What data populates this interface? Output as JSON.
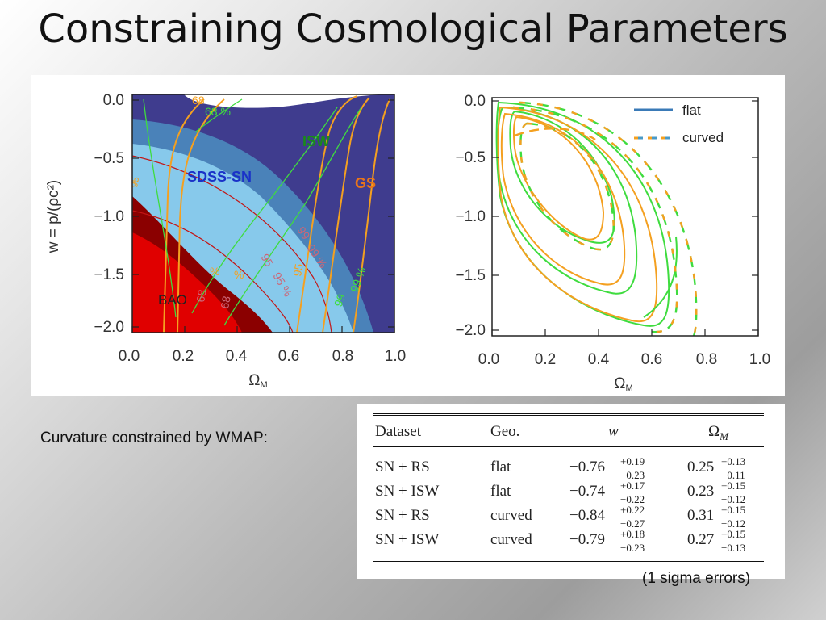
{
  "slide": {
    "title": "Constraining Cosmological Parameters",
    "caption": "Curvature constrained by WMAP:",
    "note": "(1 sigma errors)"
  },
  "colors": {
    "sn99": "#3f3c8e",
    "sn95": "#4a82b9",
    "sn68": "#87c9eb",
    "bao": "#e00000",
    "bao_dark": "#8b0000",
    "isw": "#3fdc3f",
    "gs": "#f4a020",
    "flat_legend": "#3a7ab7"
  },
  "left_panel": {
    "ylabel": "w  =  p/(ρc²)",
    "xlabel": "Ω",
    "xlabel_sub": "M",
    "yticks": [
      "0.0",
      "−0.5",
      "−1.0",
      "−1.5",
      "−2.0"
    ],
    "xticks": [
      "0.0",
      "0.2",
      "0.4",
      "0.6",
      "0.8",
      "1.0"
    ],
    "labels": {
      "isw": "ISW",
      "sdss": "SDSS-SN",
      "gs": "GS",
      "bao": "BAO"
    },
    "contour_labels": [
      "68",
      "68 %",
      "99",
      "99 %",
      "95",
      "95 %",
      "95",
      "99",
      "99 %",
      "68",
      "68",
      "%",
      "%",
      "95"
    ]
  },
  "right_panel": {
    "xlabel": "Ω",
    "xlabel_sub": "M",
    "yticks": [
      "0.0",
      "−0.5",
      "−1.0",
      "−1.5",
      "−2.0"
    ],
    "xticks": [
      "0.0",
      "0.2",
      "0.4",
      "0.6",
      "0.8",
      "1.0"
    ],
    "legend": [
      {
        "label": "flat",
        "style": "solid"
      },
      {
        "label": "curved",
        "style": "dashed"
      }
    ]
  },
  "table": {
    "headers": [
      "Dataset",
      "Geo.",
      "w",
      "Ω"
    ],
    "header_sub": "M",
    "rows": [
      {
        "dataset": "SN + RS",
        "geo": "flat",
        "w": "−0.76",
        "w_up": "+0.19",
        "w_dn": "−0.23",
        "om": "0.25",
        "om_up": "+0.13",
        "om_dn": "−0.11"
      },
      {
        "dataset": "SN + ISW",
        "geo": "flat",
        "w": "−0.74",
        "w_up": "+0.17",
        "w_dn": "−0.22",
        "om": "0.23",
        "om_up": "+0.15",
        "om_dn": "−0.12"
      },
      {
        "dataset": "SN + RS",
        "geo": "curved",
        "w": "−0.84",
        "w_up": "+0.22",
        "w_dn": "−0.27",
        "om": "0.31",
        "om_up": "+0.15",
        "om_dn": "−0.12"
      },
      {
        "dataset": "SN + ISW",
        "geo": "curved",
        "w": "−0.79",
        "w_up": "+0.18",
        "w_dn": "−0.23",
        "om": "0.27",
        "om_up": "+0.15",
        "om_dn": "−0.13"
      }
    ]
  }
}
